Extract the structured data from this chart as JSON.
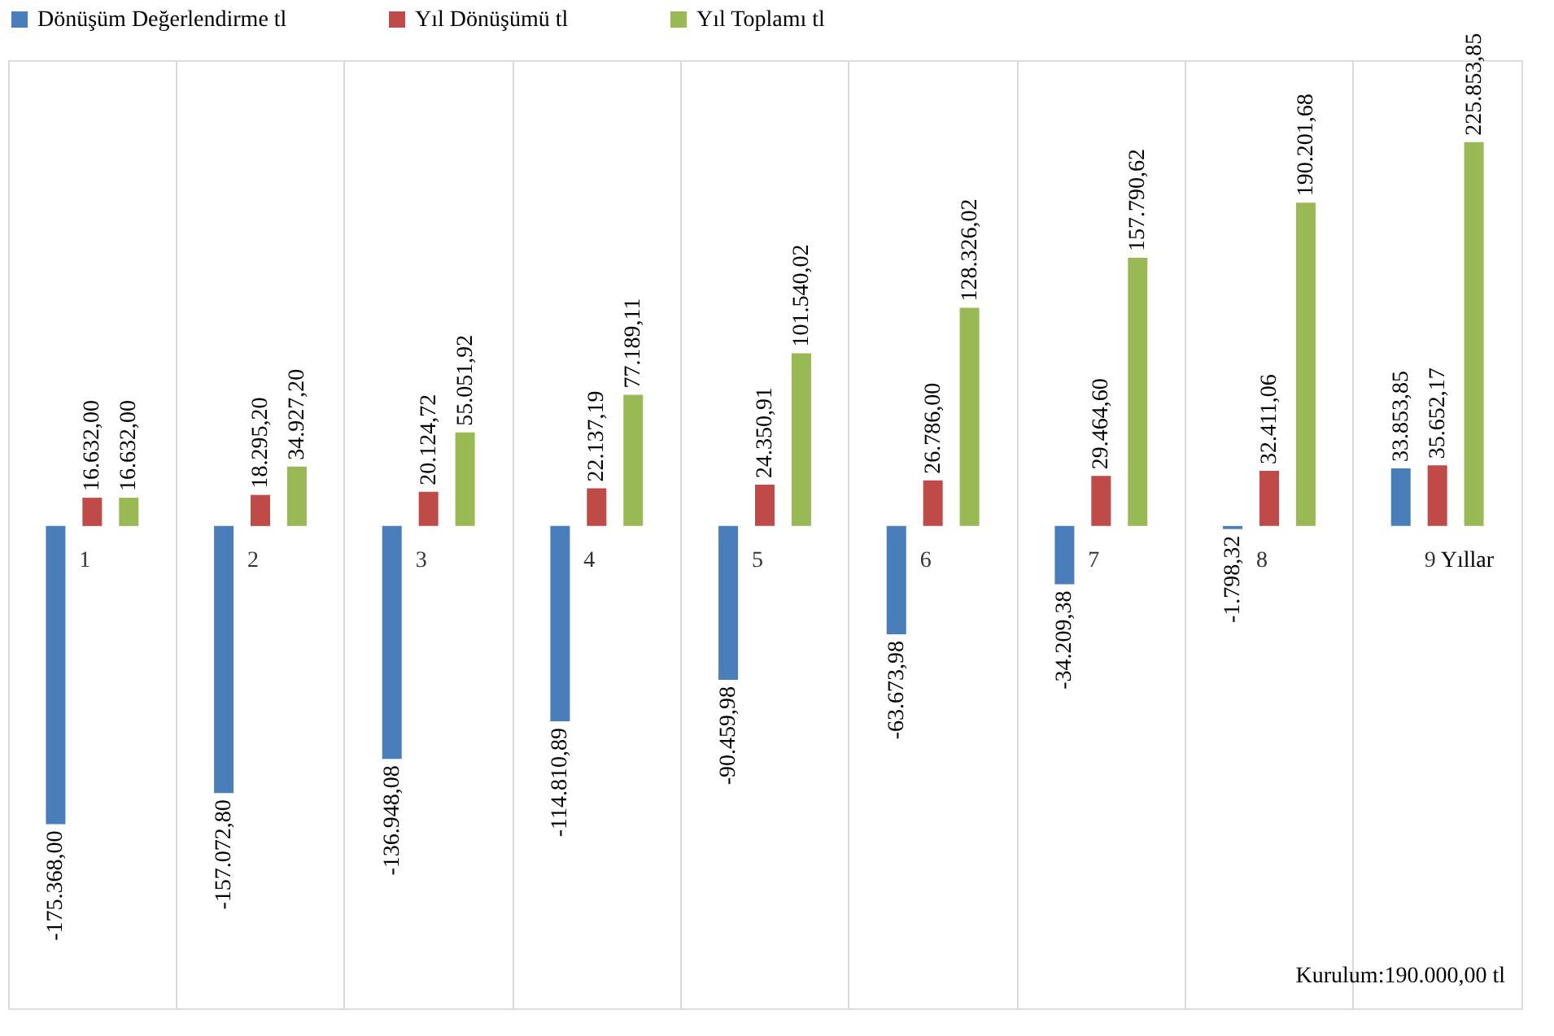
{
  "chart_data": {
    "type": "bar",
    "xlabel": "Yıllar",
    "categories": [
      "1",
      "2",
      "3",
      "4",
      "5",
      "6",
      "7",
      "8",
      "9"
    ],
    "series": [
      {
        "name": "Dönüşüm Değerlendirme tl",
        "color": "#4a7ebb",
        "values": [
          -175368.0,
          -157072.8,
          -136948.08,
          -114810.89,
          -90459.98,
          -63673.98,
          -34209.38,
          -1798.32,
          33853.85
        ],
        "value_labels": [
          "-175.368,00",
          "-157.072,80",
          "-136.948,08",
          "-114.810,89",
          "-90.459,98",
          "-63.673,98",
          "-34.209,38",
          "-1.798,32",
          "33.853,85"
        ]
      },
      {
        "name": "Yıl Dönüşümü tl",
        "color": "#be4b48",
        "values": [
          16632.0,
          18295.2,
          20124.72,
          22137.19,
          24350.91,
          26786.0,
          29464.6,
          32411.06,
          35652.17
        ],
        "value_labels": [
          "16.632,00",
          "18.295,20",
          "20.124,72",
          "22.137,19",
          "24.350,91",
          "26.786,00",
          "29.464,60",
          "32.411,06",
          "35.652,17"
        ]
      },
      {
        "name": "Yıl Toplamı tl",
        "color": "#98b954",
        "values": [
          16632.0,
          34927.2,
          55051.92,
          77189.11,
          101540.02,
          128326.02,
          157790.62,
          190201.68,
          225853.85
        ],
        "value_labels": [
          "16.632,00",
          "34.927,20",
          "55.051,92",
          "77.189,11",
          "101.540,02",
          "128.326,02",
          "157.790,62",
          "190.201,68",
          "225.853,85"
        ]
      }
    ],
    "grid": "x",
    "legend": "top",
    "annotations": [
      "Kurulum:190.000,00 tl"
    ]
  }
}
